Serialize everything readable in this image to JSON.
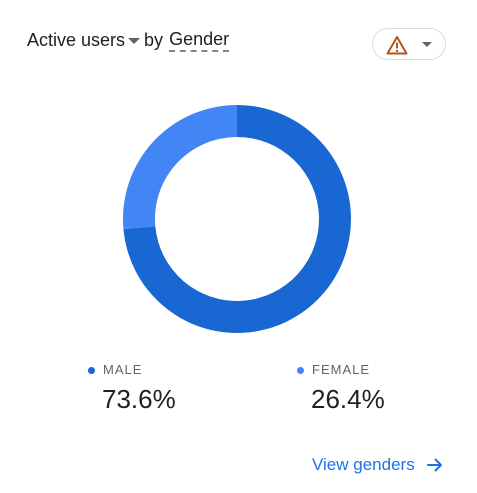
{
  "header": {
    "metric": "Active users",
    "by": "by",
    "dimension": "Gender"
  },
  "warning_chip": {
    "icon": "warning-triangle-icon",
    "icon_color": "#b3541e",
    "dropdown_icon": "caret-down-icon"
  },
  "chart_data": {
    "type": "pie",
    "style": "donut",
    "categories": [
      "MALE",
      "FEMALE"
    ],
    "values": [
      73.6,
      26.4
    ],
    "value_labels": [
      "73.6%",
      "26.4%"
    ],
    "colors": [
      "#1967d2",
      "#4285f4"
    ],
    "title": "",
    "legend": "bottom"
  },
  "footer": {
    "link_label": "View genders",
    "link_icon": "arrow-right-icon"
  }
}
